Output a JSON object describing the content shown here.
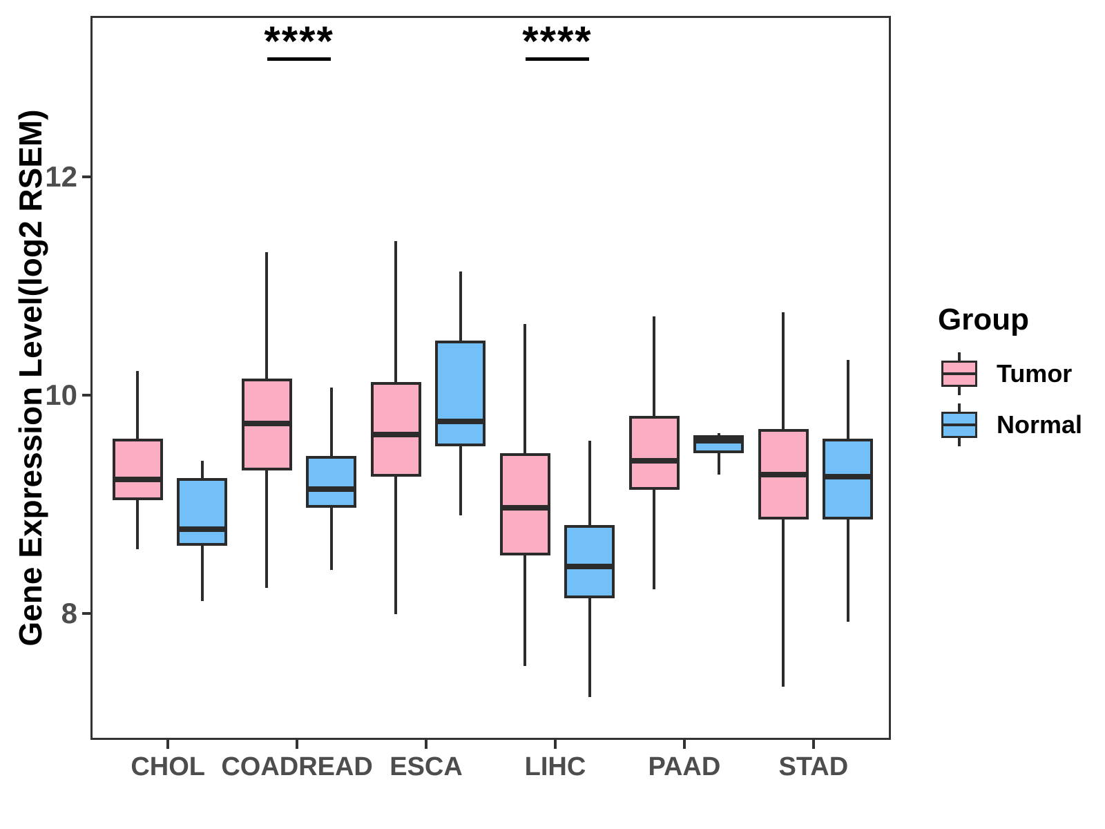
{
  "chart_data": {
    "type": "boxplot",
    "title": "",
    "xlabel": "",
    "ylabel": "Gene Expression Level(log2 RSEM)",
    "categories": [
      "CHOL",
      "COADREAD",
      "ESCA",
      "LIHC",
      "PAAD",
      "STAD"
    ],
    "yticks": [
      8,
      10,
      12
    ],
    "ylim": [
      6.85,
      13.45
    ],
    "grid": false,
    "legend": {
      "title": "Group",
      "position": "right",
      "items": [
        {
          "label": "Tumor",
          "color": "#FBAEC1"
        },
        {
          "label": "Normal",
          "color": "#73BFF7"
        }
      ]
    },
    "series": [
      {
        "name": "Tumor",
        "color": "#FBAEC1",
        "boxes": [
          {
            "lo": 8.61,
            "q1": 9.06,
            "med": 9.25,
            "q3": 9.62,
            "hi": 10.24
          },
          {
            "lo": 8.25,
            "q1": 9.33,
            "med": 9.76,
            "q3": 10.17,
            "hi": 11.33
          },
          {
            "lo": 8.01,
            "q1": 9.27,
            "med": 9.66,
            "q3": 10.14,
            "hi": 11.43
          },
          {
            "lo": 7.54,
            "q1": 8.55,
            "med": 8.99,
            "q3": 9.49,
            "hi": 10.67
          },
          {
            "lo": 8.24,
            "q1": 9.15,
            "med": 9.42,
            "q3": 9.83,
            "hi": 10.74
          },
          {
            "lo": 7.35,
            "q1": 8.88,
            "med": 9.29,
            "q3": 9.71,
            "hi": 10.78
          }
        ]
      },
      {
        "name": "Normal",
        "color": "#73BFF7",
        "boxes": [
          {
            "lo": 8.13,
            "q1": 8.64,
            "med": 8.79,
            "q3": 9.26,
            "hi": 9.42
          },
          {
            "lo": 8.42,
            "q1": 8.99,
            "med": 9.16,
            "q3": 9.46,
            "hi": 10.09
          },
          {
            "lo": 8.92,
            "q1": 9.55,
            "med": 9.78,
            "q3": 10.52,
            "hi": 11.15
          },
          {
            "lo": 7.25,
            "q1": 8.16,
            "med": 8.45,
            "q3": 8.83,
            "hi": 9.6
          },
          {
            "lo": 9.29,
            "q1": 9.49,
            "med": 9.6,
            "q3": 9.65,
            "hi": 9.67
          },
          {
            "lo": 7.94,
            "q1": 8.88,
            "med": 9.27,
            "q3": 9.62,
            "hi": 10.34
          }
        ]
      }
    ],
    "significance": [
      {
        "category": "COADREAD",
        "label": "****"
      },
      {
        "category": "LIHC",
        "label": "****"
      }
    ],
    "colors": {
      "box_outline": "#2B2B2B",
      "axis_text": "#4D4D4D",
      "axis_line": "#333333",
      "significance": "#000000"
    }
  }
}
